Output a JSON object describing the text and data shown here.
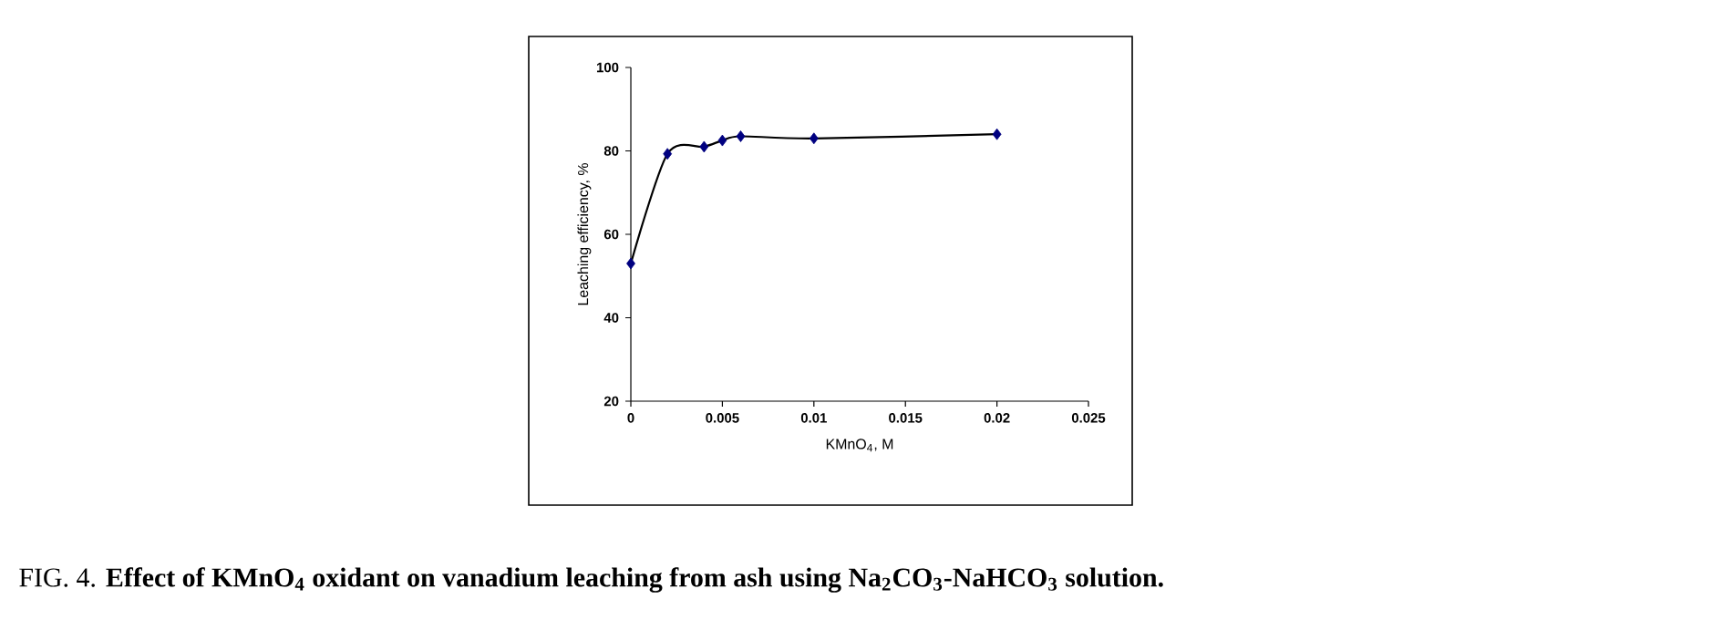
{
  "chart_data": {
    "type": "line",
    "title": "FIG. 4. **Effect of KMnO$_{4}$ oxidant on vanadium leaching from ash using Na$_{2}$CO$_{3}$-NaHCO$_{3}$ solution.**",
    "xlabel": "KMnO$_{4}$, M",
    "ylabel": "Leaching efficiency, %",
    "x": [
      0,
      0.002,
      0.004,
      0.005,
      0.006,
      0.01,
      0.02
    ],
    "series": [
      {
        "color": "#000080",
        "values": [
          53,
          79.3,
          81,
          82.5,
          83.5,
          83,
          84
        ]
      }
    ],
    "xlim": [
      0,
      0.025
    ],
    "xticks": [
      0,
      0.005,
      0.01,
      0.015,
      0.02,
      0.025
    ],
    "ylim": [
      20,
      100
    ],
    "yticks": [
      20,
      40,
      60,
      80,
      100
    ],
    "grid": false,
    "marker": "diamond",
    "line_style": "solid"
  }
}
